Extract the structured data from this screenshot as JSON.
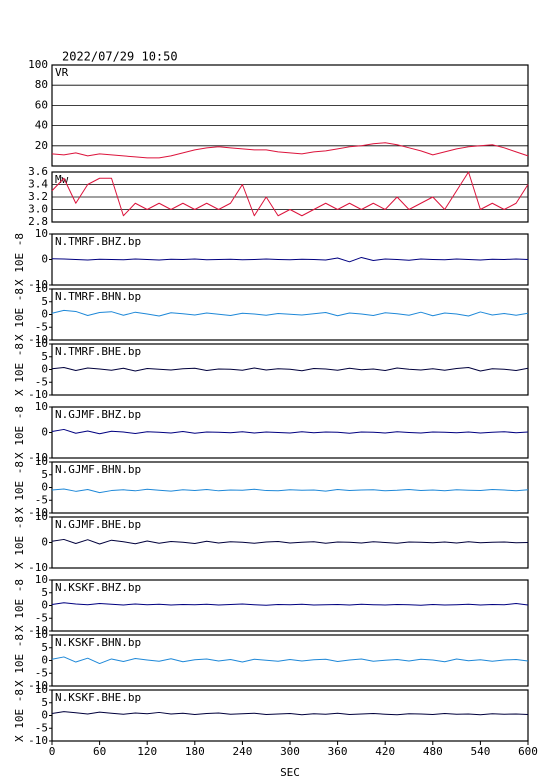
{
  "chart_data": [
    {
      "type": "line",
      "title": "2022/07/29 10:50",
      "grid": true,
      "x": [
        0,
        15,
        30,
        45,
        60,
        75,
        90,
        105,
        120,
        135,
        150,
        165,
        180,
        195,
        210,
        225,
        240,
        255,
        270,
        285,
        300,
        315,
        330,
        345,
        360,
        375,
        390,
        405,
        420,
        435,
        450,
        465,
        480,
        495,
        510,
        525,
        540,
        555,
        570,
        585,
        600
      ],
      "xlim": [
        0,
        600
      ],
      "ylim": [
        0,
        100
      ],
      "yticks": [
        20,
        40,
        60,
        80,
        100
      ],
      "series": [
        {
          "name": "VR",
          "color": "#dc143c",
          "values": [
            12,
            11,
            13,
            10,
            12,
            11,
            10,
            9,
            8,
            8,
            10,
            13,
            16,
            18,
            19,
            18,
            17,
            16,
            16,
            14,
            13,
            12,
            14,
            15,
            17,
            19,
            20,
            22,
            23,
            21,
            18,
            15,
            11,
            14,
            17,
            19,
            20,
            21,
            18,
            14,
            10
          ]
        }
      ]
    },
    {
      "type": "line",
      "grid": true,
      "x": [
        0,
        15,
        30,
        45,
        60,
        75,
        90,
        105,
        120,
        135,
        150,
        165,
        180,
        195,
        210,
        225,
        240,
        255,
        270,
        285,
        300,
        315,
        330,
        345,
        360,
        375,
        390,
        405,
        420,
        435,
        450,
        465,
        480,
        495,
        510,
        525,
        540,
        555,
        570,
        585,
        600
      ],
      "xlim": [
        0,
        600
      ],
      "ylim": [
        2.8,
        3.6
      ],
      "yticks": [
        {
          "value": 2.8,
          "label": "2.8"
        },
        {
          "value": 3,
          "label": "3.0"
        },
        {
          "value": 3.2,
          "label": "3.2"
        },
        {
          "value": 3.4,
          "label": "3.4"
        },
        {
          "value": 3.6,
          "label": "3.6"
        }
      ],
      "series": [
        {
          "name": "Mw",
          "color": "#dc143c",
          "values": [
            3.3,
            3.5,
            3.1,
            3.4,
            3.5,
            3.5,
            2.9,
            3.1,
            3.0,
            3.1,
            3.0,
            3.1,
            3.0,
            3.1,
            3.0,
            3.1,
            3.4,
            2.9,
            3.2,
            2.9,
            3.0,
            2.9,
            3.0,
            3.1,
            3.0,
            3.1,
            3.0,
            3.1,
            3.0,
            3.2,
            3.0,
            3.1,
            3.2,
            3.0,
            3.3,
            3.6,
            3.0,
            3.1,
            3.0,
            3.1,
            3.4
          ]
        }
      ]
    },
    {
      "type": "line",
      "y_label": "X 10E -8",
      "x": [
        0,
        15,
        30,
        45,
        60,
        75,
        90,
        105,
        120,
        135,
        150,
        165,
        180,
        195,
        210,
        225,
        240,
        255,
        270,
        285,
        300,
        315,
        330,
        345,
        360,
        375,
        390,
        405,
        420,
        435,
        450,
        465,
        480,
        495,
        510,
        525,
        540,
        555,
        570,
        585,
        600
      ],
      "xlim": [
        0,
        600
      ],
      "ylim": [
        -10,
        10
      ],
      "yticks": [
        -10,
        0,
        10
      ],
      "series": [
        {
          "name": "N.TMRF.BHZ.bp",
          "color": "#000080",
          "values": [
            0.3,
            0.2,
            0,
            -0.2,
            0.1,
            0,
            -0.1,
            0.2,
            0,
            -0.2,
            0.1,
            0,
            0.2,
            -0.1,
            0,
            0.1,
            -0.1,
            0,
            0.2,
            0,
            -0.1,
            0.1,
            0,
            -0.2,
            0.6,
            -0.9,
            0.8,
            -0.4,
            0.2,
            0,
            -0.3,
            0.2,
            0,
            -0.1,
            0.2,
            0,
            -0.2,
            0.1,
            0,
            0.2,
            0
          ]
        }
      ]
    },
    {
      "type": "line",
      "y_label": "X 10E -8",
      "x": [
        0,
        15,
        30,
        45,
        60,
        75,
        90,
        105,
        120,
        135,
        150,
        165,
        180,
        195,
        210,
        225,
        240,
        255,
        270,
        285,
        300,
        315,
        330,
        345,
        360,
        375,
        390,
        405,
        420,
        435,
        450,
        465,
        480,
        495,
        510,
        525,
        540,
        555,
        570,
        585,
        600
      ],
      "xlim": [
        0,
        600
      ],
      "ylim": [
        -10,
        10
      ],
      "yticks": [
        -10,
        -5,
        0,
        5,
        10
      ],
      "series": [
        {
          "name": "N.TMRF.BHN.bp",
          "color": "#1e88d8",
          "values": [
            0.5,
            1.6,
            1.2,
            -0.4,
            0.8,
            1.1,
            -0.3,
            0.9,
            0.2,
            -0.6,
            0.7,
            0.3,
            -0.2,
            0.6,
            0.1,
            -0.4,
            0.5,
            0.2,
            -0.3,
            0.4,
            0.1,
            -0.2,
            0.3,
            0.8,
            -0.5,
            0.6,
            0.2,
            -0.4,
            0.7,
            0.3,
            -0.3,
            0.9,
            -0.5,
            0.6,
            0.2,
            -0.6,
            1.0,
            -0.2,
            0.4,
            -0.3,
            0.5
          ]
        }
      ]
    },
    {
      "type": "line",
      "y_label": "X 10E -8",
      "x": [
        0,
        15,
        30,
        45,
        60,
        75,
        90,
        105,
        120,
        135,
        150,
        165,
        180,
        195,
        210,
        225,
        240,
        255,
        270,
        285,
        300,
        315,
        330,
        345,
        360,
        375,
        390,
        405,
        420,
        435,
        450,
        465,
        480,
        495,
        510,
        525,
        540,
        555,
        570,
        585,
        600
      ],
      "xlim": [
        0,
        600
      ],
      "ylim": [
        -10,
        10
      ],
      "yticks": [
        -10,
        -5,
        0,
        5,
        10
      ],
      "series": [
        {
          "name": "N.TMRF.BHE.bp",
          "color": "#00003c",
          "values": [
            0.3,
            0.8,
            -0.4,
            0.6,
            0.2,
            -0.3,
            0.5,
            -0.6,
            0.4,
            0.1,
            -0.2,
            0.3,
            0.5,
            -0.4,
            0.2,
            0.1,
            -0.3,
            0.6,
            -0.2,
            0.3,
            0.1,
            -0.5,
            0.4,
            0.2,
            -0.3,
            0.5,
            -0.1,
            0.2,
            -0.4,
            0.6,
            0.1,
            -0.2,
            0.3,
            -0.3,
            0.4,
            0.8,
            -0.6,
            0.3,
            0.1,
            -0.4,
            0.5
          ]
        }
      ]
    },
    {
      "type": "line",
      "y_label": "X 10E -8",
      "x": [
        0,
        15,
        30,
        45,
        60,
        75,
        90,
        105,
        120,
        135,
        150,
        165,
        180,
        195,
        210,
        225,
        240,
        255,
        270,
        285,
        300,
        315,
        330,
        345,
        360,
        375,
        390,
        405,
        420,
        435,
        450,
        465,
        480,
        495,
        510,
        525,
        540,
        555,
        570,
        585,
        600
      ],
      "xlim": [
        0,
        600
      ],
      "ylim": [
        -10,
        10
      ],
      "yticks": [
        -10,
        0,
        10
      ],
      "series": [
        {
          "name": "N.GJMF.BHZ.bp",
          "color": "#000080",
          "values": [
            0.4,
            1.2,
            -0.3,
            0.6,
            -0.5,
            0.5,
            0.2,
            -0.4,
            0.3,
            0.1,
            -0.2,
            0.4,
            -0.3,
            0.2,
            0.1,
            -0.1,
            0.3,
            -0.2,
            0.2,
            0,
            -0.2,
            0.3,
            -0.1,
            0.2,
            0.1,
            -0.3,
            0.2,
            0.1,
            -0.2,
            0.3,
            0,
            -0.2,
            0.2,
            0.1,
            -0.1,
            0.2,
            -0.2,
            0.1,
            0.3,
            -0.1,
            0.2
          ]
        }
      ]
    },
    {
      "type": "line",
      "y_label": "X 10E -8",
      "x": [
        0,
        15,
        30,
        45,
        60,
        75,
        90,
        105,
        120,
        135,
        150,
        165,
        180,
        195,
        210,
        225,
        240,
        255,
        270,
        285,
        300,
        315,
        330,
        345,
        360,
        375,
        390,
        405,
        420,
        435,
        450,
        465,
        480,
        495,
        510,
        525,
        540,
        555,
        570,
        585,
        600
      ],
      "xlim": [
        0,
        600
      ],
      "ylim": [
        -10,
        10
      ],
      "yticks": [
        -10,
        -5,
        0,
        5,
        10
      ],
      "series": [
        {
          "name": "N.GJMF.BHN.bp",
          "color": "#1e88d8",
          "values": [
            -1,
            -0.6,
            -1.5,
            -0.8,
            -2,
            -1.2,
            -0.9,
            -1.3,
            -0.7,
            -1.1,
            -1.4,
            -0.9,
            -1.2,
            -0.8,
            -1.3,
            -1,
            -1.1,
            -0.7,
            -1.2,
            -1.3,
            -0.9,
            -1.1,
            -1,
            -1.4,
            -0.8,
            -1.2,
            -1,
            -0.9,
            -1.3,
            -1.1,
            -0.8,
            -1.2,
            -1,
            -1.3,
            -0.9,
            -1.1,
            -1.2,
            -0.8,
            -1,
            -1.3,
            -0.9
          ]
        }
      ]
    },
    {
      "type": "line",
      "y_label": "X 10E -8",
      "x": [
        0,
        15,
        30,
        45,
        60,
        75,
        90,
        105,
        120,
        135,
        150,
        165,
        180,
        195,
        210,
        225,
        240,
        255,
        270,
        285,
        300,
        315,
        330,
        345,
        360,
        375,
        390,
        405,
        420,
        435,
        450,
        465,
        480,
        495,
        510,
        525,
        540,
        555,
        570,
        585,
        600
      ],
      "xlim": [
        0,
        600
      ],
      "ylim": [
        -10,
        10
      ],
      "yticks": [
        -10,
        0,
        10
      ],
      "series": [
        {
          "name": "N.GJMF.BHE.bp",
          "color": "#00003c",
          "values": [
            0.5,
            1.2,
            -0.4,
            1.1,
            -0.6,
            0.9,
            0.3,
            -0.5,
            0.6,
            -0.3,
            0.4,
            0.1,
            -0.4,
            0.5,
            -0.2,
            0.3,
            0.1,
            -0.3,
            0.2,
            0.4,
            -0.2,
            0.1,
            0.3,
            -0.3,
            0.2,
            0.1,
            -0.2,
            0.3,
            0,
            -0.3,
            0.2,
            0.1,
            -0.1,
            0.2,
            -0.2,
            0.3,
            -0.1,
            0.1,
            0.2,
            -0.1,
            0
          ]
        }
      ]
    },
    {
      "type": "line",
      "y_label": "X 10E -8",
      "x": [
        0,
        15,
        30,
        45,
        60,
        75,
        90,
        105,
        120,
        135,
        150,
        165,
        180,
        195,
        210,
        225,
        240,
        255,
        270,
        285,
        300,
        315,
        330,
        345,
        360,
        375,
        390,
        405,
        420,
        435,
        450,
        465,
        480,
        495,
        510,
        525,
        540,
        555,
        570,
        585,
        600
      ],
      "xlim": [
        0,
        600
      ],
      "ylim": [
        -10,
        10
      ],
      "yticks": [
        -10,
        -5,
        0,
        5,
        10
      ],
      "series": [
        {
          "name": "N.KSKF.BHZ.bp",
          "color": "#000080",
          "values": [
            0.4,
            1.1,
            0.6,
            0.3,
            0.8,
            0.5,
            0.2,
            0.6,
            0.3,
            0.5,
            0.2,
            0.4,
            0.3,
            0.5,
            0.2,
            0.4,
            0.6,
            0.3,
            0.1,
            0.4,
            0.3,
            0.5,
            0.2,
            0.3,
            0.4,
            0.2,
            0.5,
            0.3,
            0.2,
            0.4,
            0.3,
            0.1,
            0.4,
            0.2,
            0.3,
            0.5,
            0.2,
            0.4,
            0.3,
            0.8,
            0.2
          ]
        }
      ]
    },
    {
      "type": "line",
      "y_label": "X 10E -8",
      "x": [
        0,
        15,
        30,
        45,
        60,
        75,
        90,
        105,
        120,
        135,
        150,
        165,
        180,
        195,
        210,
        225,
        240,
        255,
        270,
        285,
        300,
        315,
        330,
        345,
        360,
        375,
        390,
        405,
        420,
        435,
        450,
        465,
        480,
        495,
        510,
        525,
        540,
        555,
        570,
        585,
        600
      ],
      "xlim": [
        0,
        600
      ],
      "ylim": [
        -10,
        10
      ],
      "yticks": [
        -10,
        -5,
        0,
        5,
        10
      ],
      "series": [
        {
          "name": "N.KSKF.BHN.bp",
          "color": "#1e88d8",
          "values": [
            0.5,
            1.4,
            -0.6,
            0.9,
            -1.2,
            0.6,
            -0.4,
            0.8,
            0.2,
            -0.3,
            0.7,
            -0.5,
            0.3,
            0.6,
            -0.2,
            0.4,
            -0.6,
            0.5,
            0.1,
            -0.3,
            0.4,
            -0.2,
            0.3,
            0.5,
            -0.4,
            0.2,
            0.6,
            -0.3,
            0.1,
            0.4,
            -0.2,
            0.5,
            0.2,
            -0.5,
            0.6,
            -0.1,
            0.3,
            -0.3,
            0.2,
            0.4,
            -0.2
          ]
        }
      ]
    },
    {
      "type": "line",
      "y_label": "X 10E -8",
      "x_label": "SEC",
      "x": [
        0,
        15,
        30,
        45,
        60,
        75,
        90,
        105,
        120,
        135,
        150,
        165,
        180,
        195,
        210,
        225,
        240,
        255,
        270,
        285,
        300,
        315,
        330,
        345,
        360,
        375,
        390,
        405,
        420,
        435,
        450,
        465,
        480,
        495,
        510,
        525,
        540,
        555,
        570,
        585,
        600
      ],
      "xlim": [
        0,
        600
      ],
      "xticks": [
        0,
        60,
        120,
        180,
        240,
        300,
        360,
        420,
        480,
        540,
        600
      ],
      "ylim": [
        -10,
        10
      ],
      "yticks": [
        -10,
        -5,
        0,
        5,
        10
      ],
      "series": [
        {
          "name": "N.KSKF.BHE.bp",
          "color": "#00003c",
          "values": [
            0.8,
            1.5,
            1.1,
            0.6,
            1.3,
            0.9,
            0.5,
            1,
            0.7,
            1.2,
            0.6,
            0.9,
            0.4,
            0.8,
            1,
            0.5,
            0.7,
            0.9,
            0.4,
            0.6,
            0.8,
            0.3,
            0.7,
            0.5,
            0.9,
            0.4,
            0.6,
            0.8,
            0.5,
            0.3,
            0.7,
            0.6,
            0.4,
            0.8,
            0.5,
            0.6,
            0.3,
            0.7,
            0.5,
            0.6,
            0.4
          ]
        }
      ]
    }
  ]
}
